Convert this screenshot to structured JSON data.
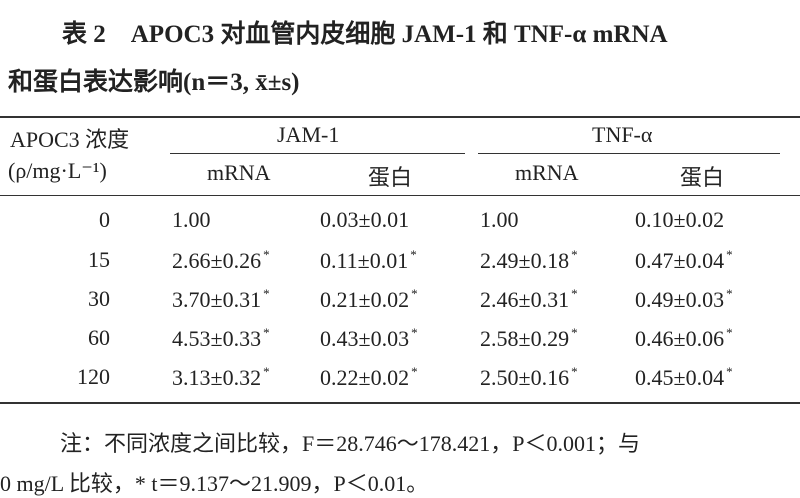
{
  "title": [
    "表 2　APOC3 对血管内皮细胞 JAM-1 和 TNF-α mRNA",
    "和蛋白表达影响(n＝3, x̄±s)"
  ],
  "table": {
    "header": {
      "group": "APOC3 浓度",
      "unit": "(ρ/mg·L⁻¹)",
      "spans": [
        "JAM-1",
        "TNF-α"
      ],
      "sub": [
        "mRNA",
        "蛋白",
        "mRNA",
        "蛋白"
      ]
    },
    "rows": [
      [
        "0",
        {
          "text": "1.00"
        },
        {
          "text": "0.03±0.01"
        },
        {
          "text": "1.00"
        },
        {
          "text": "0.10±0.02"
        }
      ],
      [
        "15",
        {
          "text": "2.66±0.26",
          "sup": "*"
        },
        {
          "text": "0.11±0.01",
          "sup": "*"
        },
        {
          "text": "2.49±0.18",
          "sup": "*"
        },
        {
          "text": "0.47±0.04",
          "sup": "*"
        }
      ],
      [
        "30",
        {
          "text": "3.70±0.31",
          "sup": "*"
        },
        {
          "text": "0.21±0.02",
          "sup": "*"
        },
        {
          "text": "2.46±0.31",
          "sup": "*"
        },
        {
          "text": "0.49±0.03",
          "sup": "*"
        }
      ],
      [
        "60",
        {
          "text": "4.53±0.33",
          "sup": "*"
        },
        {
          "text": "0.43±0.03",
          "sup": "*"
        },
        {
          "text": "2.58±0.29",
          "sup": "*"
        },
        {
          "text": "0.46±0.06",
          "sup": "*"
        }
      ],
      [
        "120",
        {
          "text": "3.13±0.32",
          "sup": "*"
        },
        {
          "text": "0.22±0.02",
          "sup": "*"
        },
        {
          "text": "2.50±0.16",
          "sup": "*"
        },
        {
          "text": "0.45±0.04",
          "sup": "*"
        }
      ]
    ]
  },
  "notes": [
    "注：不同浓度之间比较，F＝28.746～178.421，P＜0.001；与",
    "0 mg/L 比较，* t＝9.137～21.909，P＜0.01。"
  ]
}
